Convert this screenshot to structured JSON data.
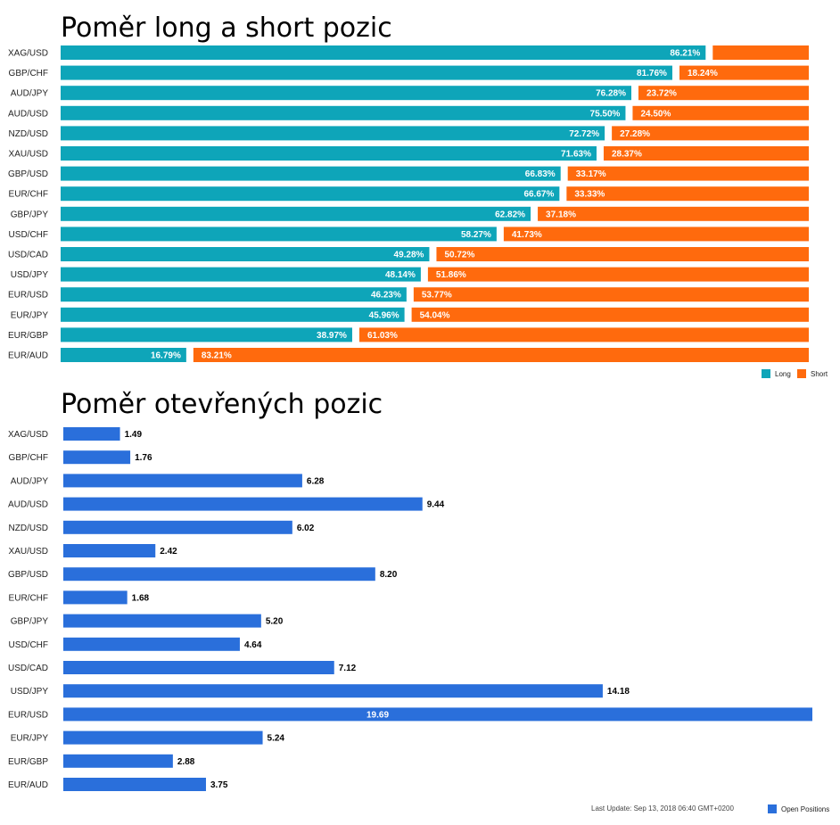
{
  "colors": {
    "long": "#0ea5b9",
    "short": "#ff6a0d",
    "open": "#2a6fdb"
  },
  "legend": {
    "long": "Long",
    "short": "Short",
    "open": "Open Positions"
  },
  "footer": {
    "last_update": "Last Update: Sep 13, 2018 06:40 GMT+0200"
  },
  "chart_data": [
    {
      "type": "bar",
      "orientation": "horizontal",
      "stacked": true,
      "title": "Poměr long a short pozic",
      "categories": [
        "XAG/USD",
        "GBP/CHF",
        "AUD/JPY",
        "AUD/USD",
        "NZD/USD",
        "XAU/USD",
        "GBP/USD",
        "EUR/CHF",
        "GBP/JPY",
        "USD/CHF",
        "USD/CAD",
        "USD/JPY",
        "EUR/USD",
        "EUR/JPY",
        "EUR/GBP",
        "EUR/AUD"
      ],
      "series": [
        {
          "name": "Long",
          "values": [
            86.21,
            81.76,
            76.28,
            75.5,
            72.72,
            71.63,
            66.83,
            66.67,
            62.82,
            58.27,
            49.28,
            48.14,
            46.23,
            45.96,
            38.97,
            16.79
          ],
          "labels": [
            "86.21%",
            "81.76%",
            "76.28%",
            "75.50%",
            "72.72%",
            "71.63%",
            "66.83%",
            "66.67%",
            "62.82%",
            "58.27%",
            "49.28%",
            "48.14%",
            "46.23%",
            "45.96%",
            "38.97%",
            "16.79%"
          ]
        },
        {
          "name": "Short",
          "values": [
            13.79,
            18.24,
            23.72,
            24.5,
            27.28,
            28.37,
            33.17,
            33.33,
            37.18,
            41.73,
            50.72,
            51.86,
            53.77,
            54.04,
            61.03,
            83.21
          ],
          "labels": [
            "",
            "18.24%",
            "23.72%",
            "24.50%",
            "27.28%",
            "28.37%",
            "33.17%",
            "33.33%",
            "37.18%",
            "41.73%",
            "50.72%",
            "51.86%",
            "53.77%",
            "54.04%",
            "61.03%",
            "83.21%"
          ]
        }
      ],
      "legend_position": "bottom-right",
      "grid": false
    },
    {
      "type": "bar",
      "orientation": "horizontal",
      "title": "Poměr otevřených pozic",
      "categories": [
        "XAG/USD",
        "GBP/CHF",
        "AUD/JPY",
        "AUD/USD",
        "NZD/USD",
        "XAU/USD",
        "GBP/USD",
        "EUR/CHF",
        "GBP/JPY",
        "USD/CHF",
        "USD/CAD",
        "USD/JPY",
        "EUR/USD",
        "EUR/JPY",
        "EUR/GBP",
        "EUR/AUD"
      ],
      "series": [
        {
          "name": "Open Positions",
          "values": [
            1.49,
            1.76,
            6.28,
            9.44,
            6.02,
            2.42,
            8.2,
            1.68,
            5.2,
            4.64,
            7.12,
            14.18,
            19.69,
            5.24,
            2.88,
            3.75
          ],
          "labels": [
            "1.49",
            "1.76",
            "6.28",
            "9.44",
            "6.02",
            "2.42",
            "8.20",
            "1.68",
            "5.20",
            "4.64",
            "7.12",
            "14.18",
            "19.69",
            "5.24",
            "2.88",
            "3.75"
          ]
        }
      ],
      "legend_position": "bottom-right",
      "grid": false
    }
  ]
}
